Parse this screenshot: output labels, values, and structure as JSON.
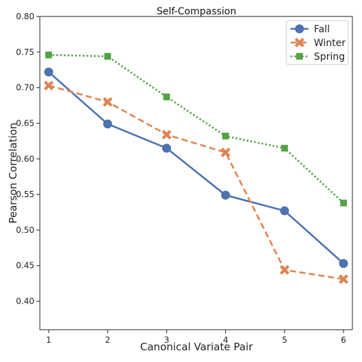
{
  "chart_data": {
    "type": "line",
    "title": "Self-Compassion",
    "xlabel": "Canonical Variate Pair",
    "ylabel": "Pearson Correlation",
    "x": [
      1,
      2,
      3,
      4,
      5,
      6
    ],
    "xlim": [
      0.85,
      6.15
    ],
    "ylim": [
      0.36,
      0.8
    ],
    "yticks": [
      "0.40",
      "0.45",
      "0.50",
      "0.55",
      "0.60",
      "0.65",
      "0.70",
      "0.75",
      "0.80"
    ],
    "xticks": [
      "1",
      "2",
      "3",
      "4",
      "5",
      "6"
    ],
    "grid": false,
    "legend_position": "top-right",
    "series": [
      {
        "name": "Fall",
        "values": [
          0.722,
          0.649,
          0.615,
          0.549,
          0.527,
          0.453
        ],
        "color": "#4c72b0",
        "marker": "circle",
        "line": "solid"
      },
      {
        "name": "Winter",
        "values": [
          0.703,
          0.68,
          0.634,
          0.609,
          0.444,
          0.431
        ],
        "color": "#dd8452",
        "marker": "x",
        "line": "dashed"
      },
      {
        "name": "Spring",
        "values": [
          0.746,
          0.744,
          0.687,
          0.632,
          0.615,
          0.538
        ],
        "color": "#55a146",
        "marker": "square",
        "line": "dotted"
      }
    ]
  }
}
